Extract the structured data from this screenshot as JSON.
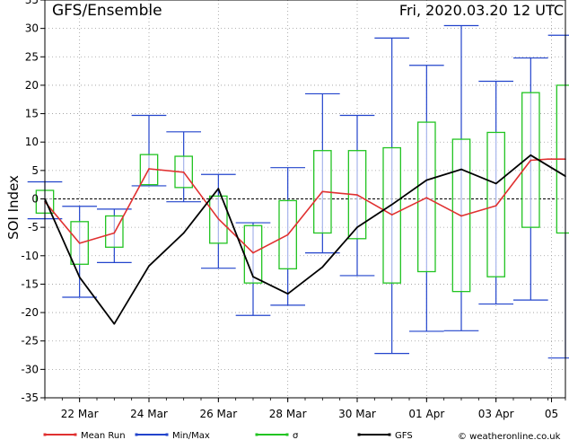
{
  "chart_data": {
    "type": "box-whisker-line",
    "title": "GFS/Ensemble",
    "run_label": "Fri, 2020.03.20   12 UTC",
    "ylabel": "SOI Index",
    "ylim": [
      -35,
      35
    ],
    "yticks": [
      -35,
      -30,
      -25,
      -20,
      -15,
      -10,
      -5,
      0,
      5,
      10,
      15,
      20,
      25,
      30,
      35
    ],
    "x_range": [
      0,
      30
    ],
    "xticks": [
      {
        "x": 2,
        "label": "22 Mar"
      },
      {
        "x": 6,
        "label": "24 Mar"
      },
      {
        "x": 10,
        "label": "26 Mar"
      },
      {
        "x": 14,
        "label": "28 Mar"
      },
      {
        "x": 18,
        "label": "30 Mar"
      },
      {
        "x": 22,
        "label": "01 Apr"
      },
      {
        "x": 26,
        "label": "03 Apr"
      },
      {
        "x": 29.2,
        "label": "05"
      }
    ],
    "grid": true,
    "series": [
      {
        "name": "Mean Run",
        "color": "#e03030",
        "x": [
          0,
          2,
          4,
          6,
          8,
          10,
          12,
          14,
          16,
          18,
          20,
          22,
          24,
          26,
          28,
          29,
          30
        ],
        "values": [
          -0.5,
          -7.8,
          -6,
          5.3,
          4.7,
          -3.5,
          -9.5,
          -6.3,
          1.3,
          0.7,
          -2.8,
          0.2,
          -3,
          -1.2,
          6.8,
          7,
          7
        ]
      },
      {
        "name": "GFS",
        "color": "#000000",
        "x": [
          0,
          2,
          4,
          6,
          8,
          10,
          12,
          14,
          16,
          18,
          20,
          22,
          24,
          26,
          28,
          30
        ],
        "values": [
          0,
          -13.8,
          -22,
          -11.8,
          -6,
          1.8,
          -13.7,
          -16.7,
          -12,
          -5,
          -1,
          3.3,
          5.2,
          2.7,
          7.7,
          4
        ]
      }
    ],
    "sigma": {
      "name": "σ",
      "color": "#22c422",
      "x": [
        0,
        2,
        4,
        6,
        8,
        10,
        12,
        14,
        16,
        18,
        20,
        22,
        24,
        26,
        28,
        30
      ],
      "low": [
        -2.5,
        -11.5,
        -8.5,
        2.5,
        2,
        -7.8,
        -14.8,
        -12.3,
        -6,
        -7,
        -14.8,
        -12.8,
        -16.3,
        -13.7,
        -5,
        -6
      ],
      "high": [
        1.5,
        -4,
        -3,
        7.8,
        7.5,
        0.5,
        -4.7,
        -0.3,
        8.5,
        8.5,
        9,
        13.5,
        10.5,
        11.7,
        18.7,
        20
      ]
    },
    "minmax": {
      "name": "Min/Max",
      "color": "#2244cc",
      "x": [
        0,
        2,
        4,
        6,
        8,
        10,
        12,
        14,
        16,
        18,
        20,
        22,
        24,
        26,
        28,
        30
      ],
      "min": [
        -3.5,
        -17.3,
        -11.2,
        2.3,
        -0.5,
        -12.2,
        -20.5,
        -18.7,
        -9.5,
        -13.5,
        -27.2,
        -23.3,
        -23.2,
        -18.5,
        -17.8,
        -28
      ],
      "max": [
        3,
        -1.3,
        -1.8,
        14.7,
        11.8,
        4.3,
        -4.2,
        5.5,
        18.5,
        14.7,
        28.3,
        23.5,
        30.5,
        20.7,
        24.8,
        28.8
      ]
    },
    "legend": [
      {
        "label": "Mean Run",
        "color": "#e03030"
      },
      {
        "label": "Min/Max",
        "color": "#2244cc"
      },
      {
        "label": "σ",
        "color": "#22c422"
      },
      {
        "label": "GFS",
        "color": "#000000"
      }
    ],
    "legend_position": "bottom",
    "credit": "© weatheronline.co.uk"
  }
}
